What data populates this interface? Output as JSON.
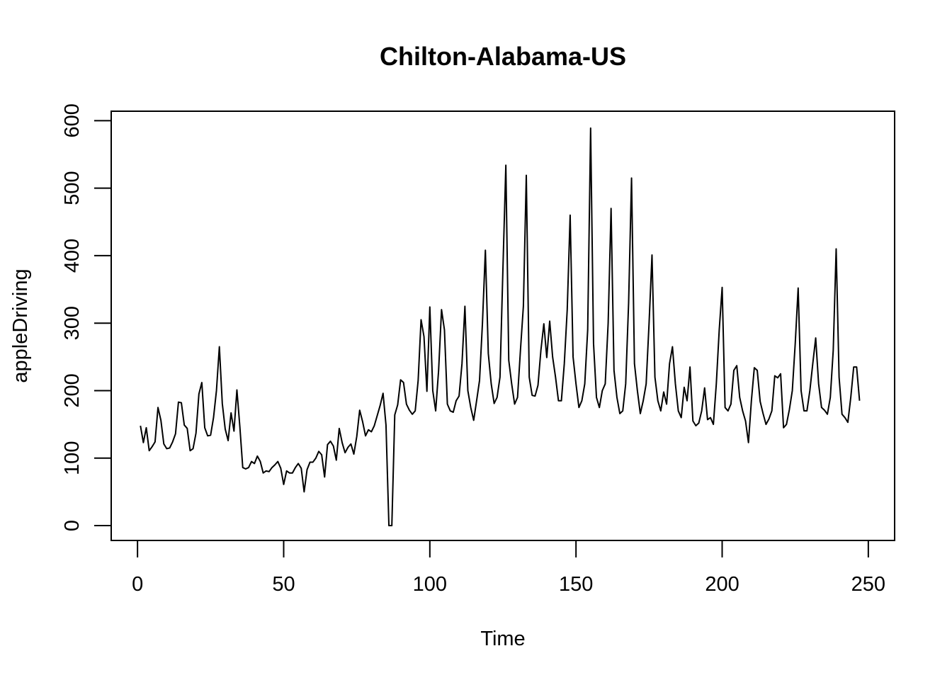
{
  "chart_data": {
    "type": "line",
    "title": "Chilton-Alabama-US",
    "xlabel": "Time",
    "ylabel": "appleDriving",
    "xlim": [
      -9,
      259
    ],
    "ylim": [
      -22,
      614
    ],
    "x_ticks": [
      0,
      50,
      100,
      150,
      200,
      250
    ],
    "y_ticks": [
      0,
      100,
      200,
      300,
      400,
      500,
      600
    ],
    "x_tick_labels": [
      "0",
      "50",
      "100",
      "150",
      "200",
      "250"
    ],
    "y_tick_labels": [
      "0",
      "100",
      "200",
      "300",
      "400",
      "500",
      "600"
    ],
    "grid": false,
    "series": [
      {
        "x_start": 1,
        "x_step": 1,
        "values": [
          148,
          123,
          145,
          111,
          117,
          124,
          175,
          156,
          121,
          114,
          115,
          124,
          136,
          183,
          182,
          149,
          144,
          111,
          114,
          137,
          195,
          212,
          145,
          133,
          134,
          160,
          200,
          265,
          181,
          143,
          126,
          167,
          140,
          201,
          147,
          86,
          84,
          86,
          95,
          92,
          103,
          95,
          78,
          81,
          80,
          86,
          90,
          95,
          85,
          61,
          81,
          78,
          78,
          86,
          92,
          85,
          50,
          83,
          94,
          94,
          100,
          110,
          105,
          72,
          120,
          125,
          118,
          97,
          144,
          123,
          108,
          116,
          121,
          106,
          132,
          171,
          154,
          133,
          142,
          139,
          148,
          163,
          178,
          196,
          149,
          0,
          0,
          164,
          179,
          216,
          212,
          180,
          171,
          165,
          170,
          215,
          305,
          280,
          199,
          324,
          200,
          170,
          230,
          320,
          290,
          180,
          170,
          168,
          185,
          192,
          240,
          325,
          200,
          175,
          156,
          185,
          215,
          300,
          408,
          255,
          210,
          181,
          190,
          220,
          380,
          534,
          245,
          210,
          180,
          190,
          260,
          325,
          519,
          220,
          193,
          192,
          208,
          260,
          299,
          249,
          303,
          250,
          220,
          185,
          185,
          240,
          320,
          460,
          250,
          210,
          175,
          185,
          210,
          290,
          589,
          270,
          190,
          175,
          200,
          210,
          300,
          470,
          230,
          190,
          166,
          170,
          210,
          330,
          515,
          240,
          200,
          166,
          185,
          210,
          300,
          401,
          220,
          185,
          170,
          198,
          180,
          240,
          265,
          210,
          170,
          160,
          205,
          185,
          235,
          155,
          148,
          152,
          170,
          204,
          157,
          160,
          150,
          210,
          290,
          353,
          175,
          170,
          180,
          230,
          237,
          190,
          170,
          155,
          123,
          185,
          234,
          230,
          184,
          166,
          150,
          158,
          170,
          222,
          219,
          225,
          145,
          150,
          172,
          200,
          270,
          352,
          200,
          170,
          170,
          200,
          240,
          278,
          210,
          175,
          171,
          165,
          190,
          260,
          410,
          220,
          165,
          160,
          153,
          190,
          235,
          235,
          185
        ]
      }
    ]
  }
}
